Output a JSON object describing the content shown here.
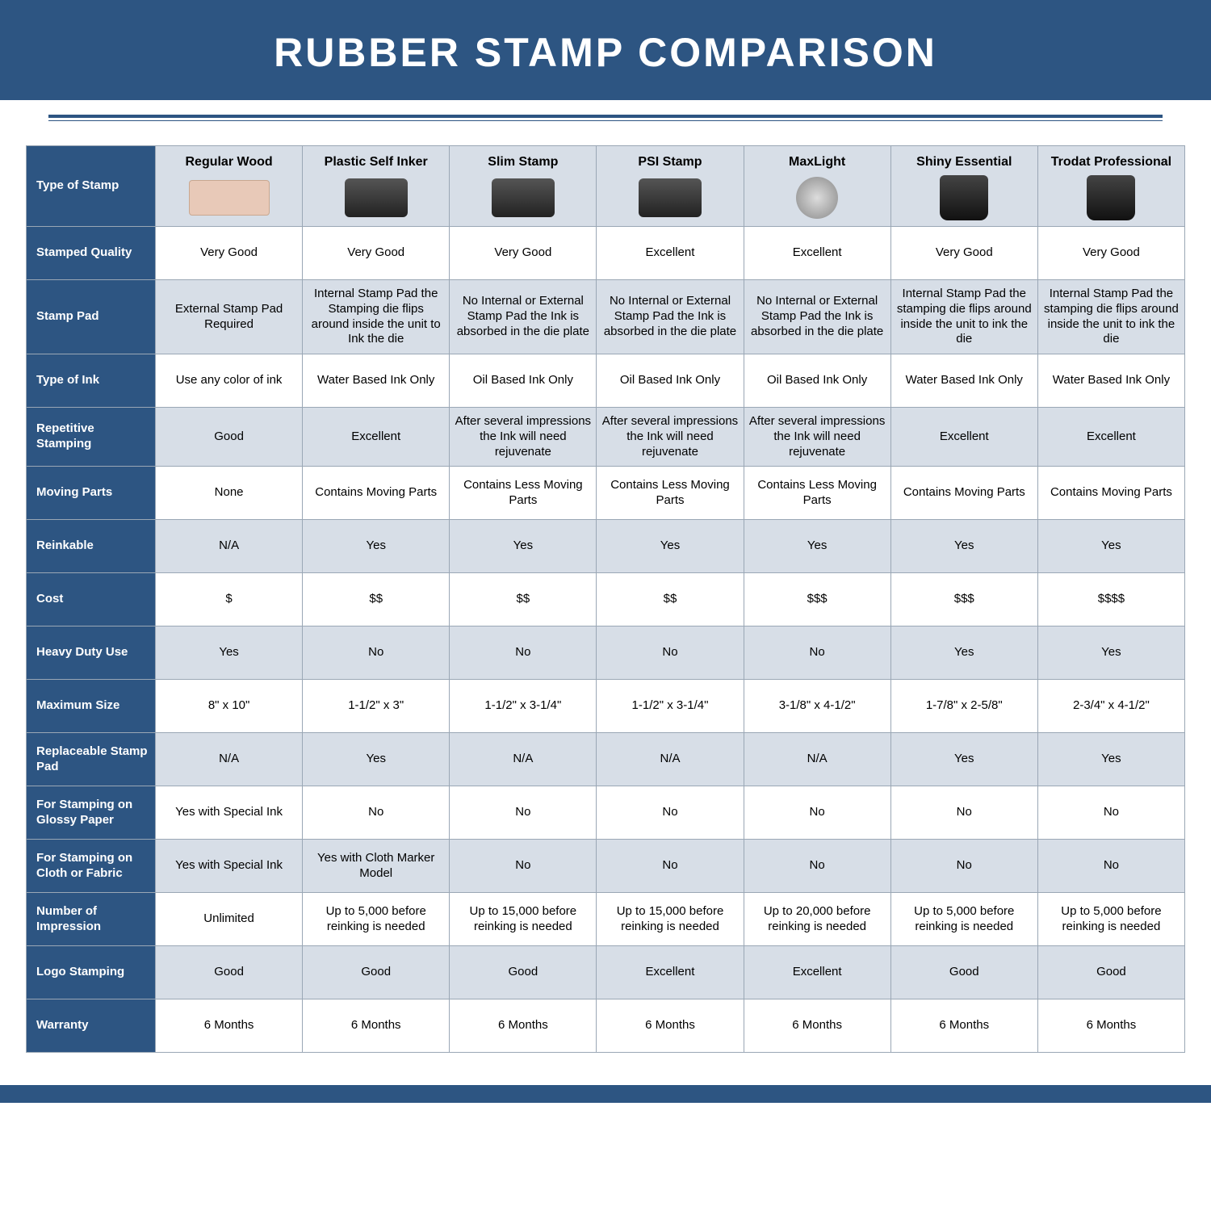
{
  "title": "RUBBER STAMP COMPARISON",
  "colors": {
    "brand": "#2d5582",
    "alt_row": "#d7dee7",
    "border": "#9aa7b5",
    "white": "#ffffff"
  },
  "table": {
    "corner_label": "Type of Stamp",
    "columns": [
      "Regular Wood",
      "Plastic Self Inker",
      "Slim Stamp",
      "PSI Stamp",
      "MaxLight",
      "Shiny Essential",
      "Trodat Professional"
    ],
    "col_icon_class": [
      "wood",
      "",
      "",
      "",
      "round",
      "tall",
      "tall"
    ],
    "rows": [
      {
        "label": "Stamped Quality",
        "cells": [
          "Very Good",
          "Very Good",
          "Very Good",
          "Excellent",
          "Excellent",
          "Very Good",
          "Very Good"
        ]
      },
      {
        "label": "Stamp Pad",
        "cells": [
          "External Stamp Pad Required",
          "Internal Stamp Pad the Stamping die flips around inside the unit to Ink the die",
          "No Internal or External Stamp Pad the Ink is absorbed in the die plate",
          "No Internal or External Stamp Pad the Ink is absorbed in the die plate",
          "No Internal or External Stamp Pad the Ink is absorbed in the die plate",
          "Internal Stamp Pad the stamping die flips around inside the unit to ink the die",
          "Internal Stamp Pad the stamping die flips around inside the unit to ink the die"
        ]
      },
      {
        "label": "Type of Ink",
        "cells": [
          "Use any color of ink",
          "Water Based Ink Only",
          "Oil Based Ink Only",
          "Oil Based Ink Only",
          "Oil Based Ink Only",
          "Water Based Ink Only",
          "Water Based Ink Only"
        ]
      },
      {
        "label": "Repetitive Stamping",
        "cells": [
          "Good",
          "Excellent",
          "After several impressions the Ink will need rejuvenate",
          "After several impressions the Ink will need rejuvenate",
          "After several impressions the Ink will need rejuvenate",
          "Excellent",
          "Excellent"
        ]
      },
      {
        "label": "Moving Parts",
        "cells": [
          "None",
          "Contains Moving Parts",
          "Contains Less Moving Parts",
          "Contains Less Moving Parts",
          "Contains Less Moving Parts",
          "Contains Moving Parts",
          "Contains Moving Parts"
        ]
      },
      {
        "label": "Reinkable",
        "cells": [
          "N/A",
          "Yes",
          "Yes",
          "Yes",
          "Yes",
          "Yes",
          "Yes"
        ]
      },
      {
        "label": "Cost",
        "cells": [
          "$",
          "$$",
          "$$",
          "$$",
          "$$$",
          "$$$",
          "$$$$"
        ]
      },
      {
        "label": "Heavy Duty Use",
        "cells": [
          "Yes",
          "No",
          "No",
          "No",
          "No",
          "Yes",
          "Yes"
        ]
      },
      {
        "label": "Maximum Size",
        "cells": [
          "8\" x 10\"",
          "1-1/2\" x 3\"",
          "1-1/2\" x 3-1/4\"",
          "1-1/2\" x 3-1/4\"",
          "3-1/8\" x 4-1/2\"",
          "1-7/8\" x 2-5/8\"",
          "2-3/4\" x 4-1/2\""
        ]
      },
      {
        "label": "Replaceable Stamp Pad",
        "cells": [
          "N/A",
          "Yes",
          "N/A",
          "N/A",
          "N/A",
          "Yes",
          "Yes"
        ]
      },
      {
        "label": "For Stamping on Glossy Paper",
        "cells": [
          "Yes with Special Ink",
          "No",
          "No",
          "No",
          "No",
          "No",
          "No"
        ]
      },
      {
        "label": "For Stamping on Cloth or Fabric",
        "cells": [
          "Yes with Special Ink",
          "Yes with Cloth Marker Model",
          "No",
          "No",
          "No",
          "No",
          "No"
        ]
      },
      {
        "label": "Number of Impression",
        "cells": [
          "Unlimited",
          "Up to 5,000 before reinking is needed",
          "Up to 15,000 before reinking is needed",
          "Up to 15,000 before reinking is needed",
          "Up to 20,000 before reinking is needed",
          "Up to 5,000 before reinking is needed",
          "Up to 5,000 before reinking is needed"
        ]
      },
      {
        "label": "Logo Stamping",
        "cells": [
          "Good",
          "Good",
          "Good",
          "Excellent",
          "Excellent",
          "Good",
          "Good"
        ]
      },
      {
        "label": "Warranty",
        "cells": [
          "6 Months",
          "6 Months",
          "6 Months",
          "6 Months",
          "6 Months",
          "6 Months",
          "6 Months"
        ]
      }
    ]
  }
}
